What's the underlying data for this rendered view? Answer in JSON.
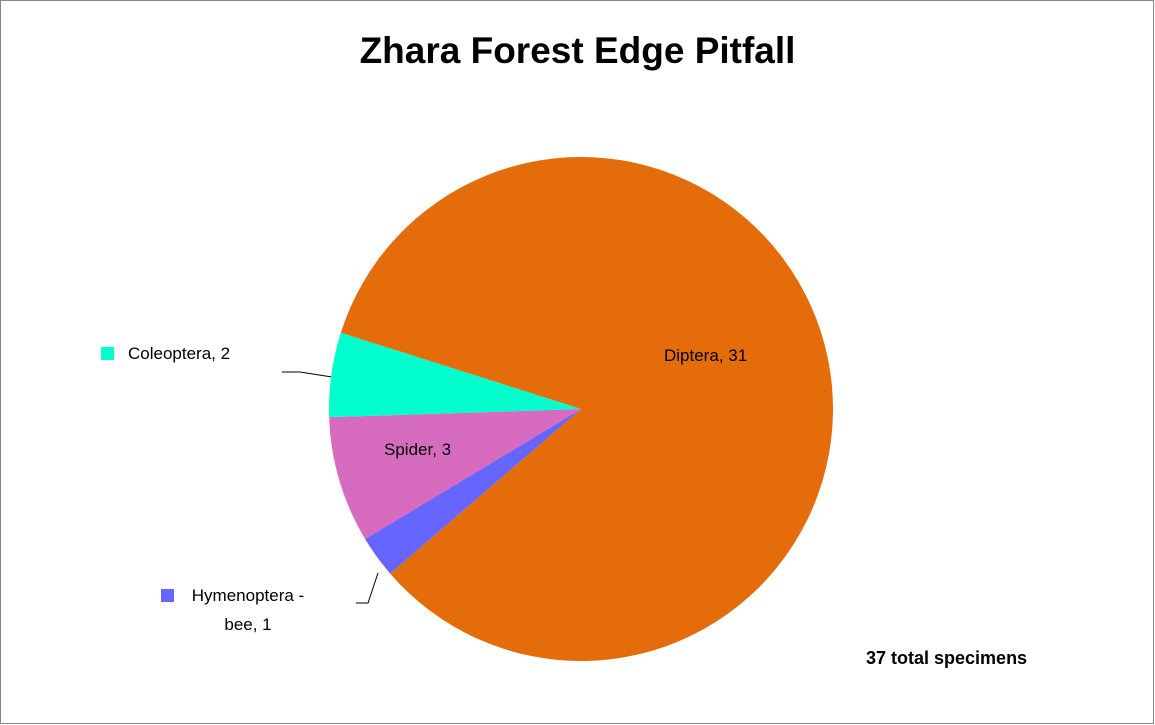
{
  "chart_data": {
    "type": "pie",
    "title": "Zhara Forest Edge Pitfall",
    "annotation": "37 total specimens",
    "categories": [
      "Diptera",
      "Hymenoptera - bee",
      "Spider",
      "Coleoptera"
    ],
    "values": [
      31,
      1,
      3,
      2
    ],
    "value_labels": [
      "Diptera, 31",
      "Hymenoptera - bee, 1",
      "Spider, 3",
      "Coleoptera, 2"
    ],
    "colors": [
      "#E46C0A",
      "#6666FF",
      "#D76BBF",
      "#00FFCC"
    ]
  }
}
